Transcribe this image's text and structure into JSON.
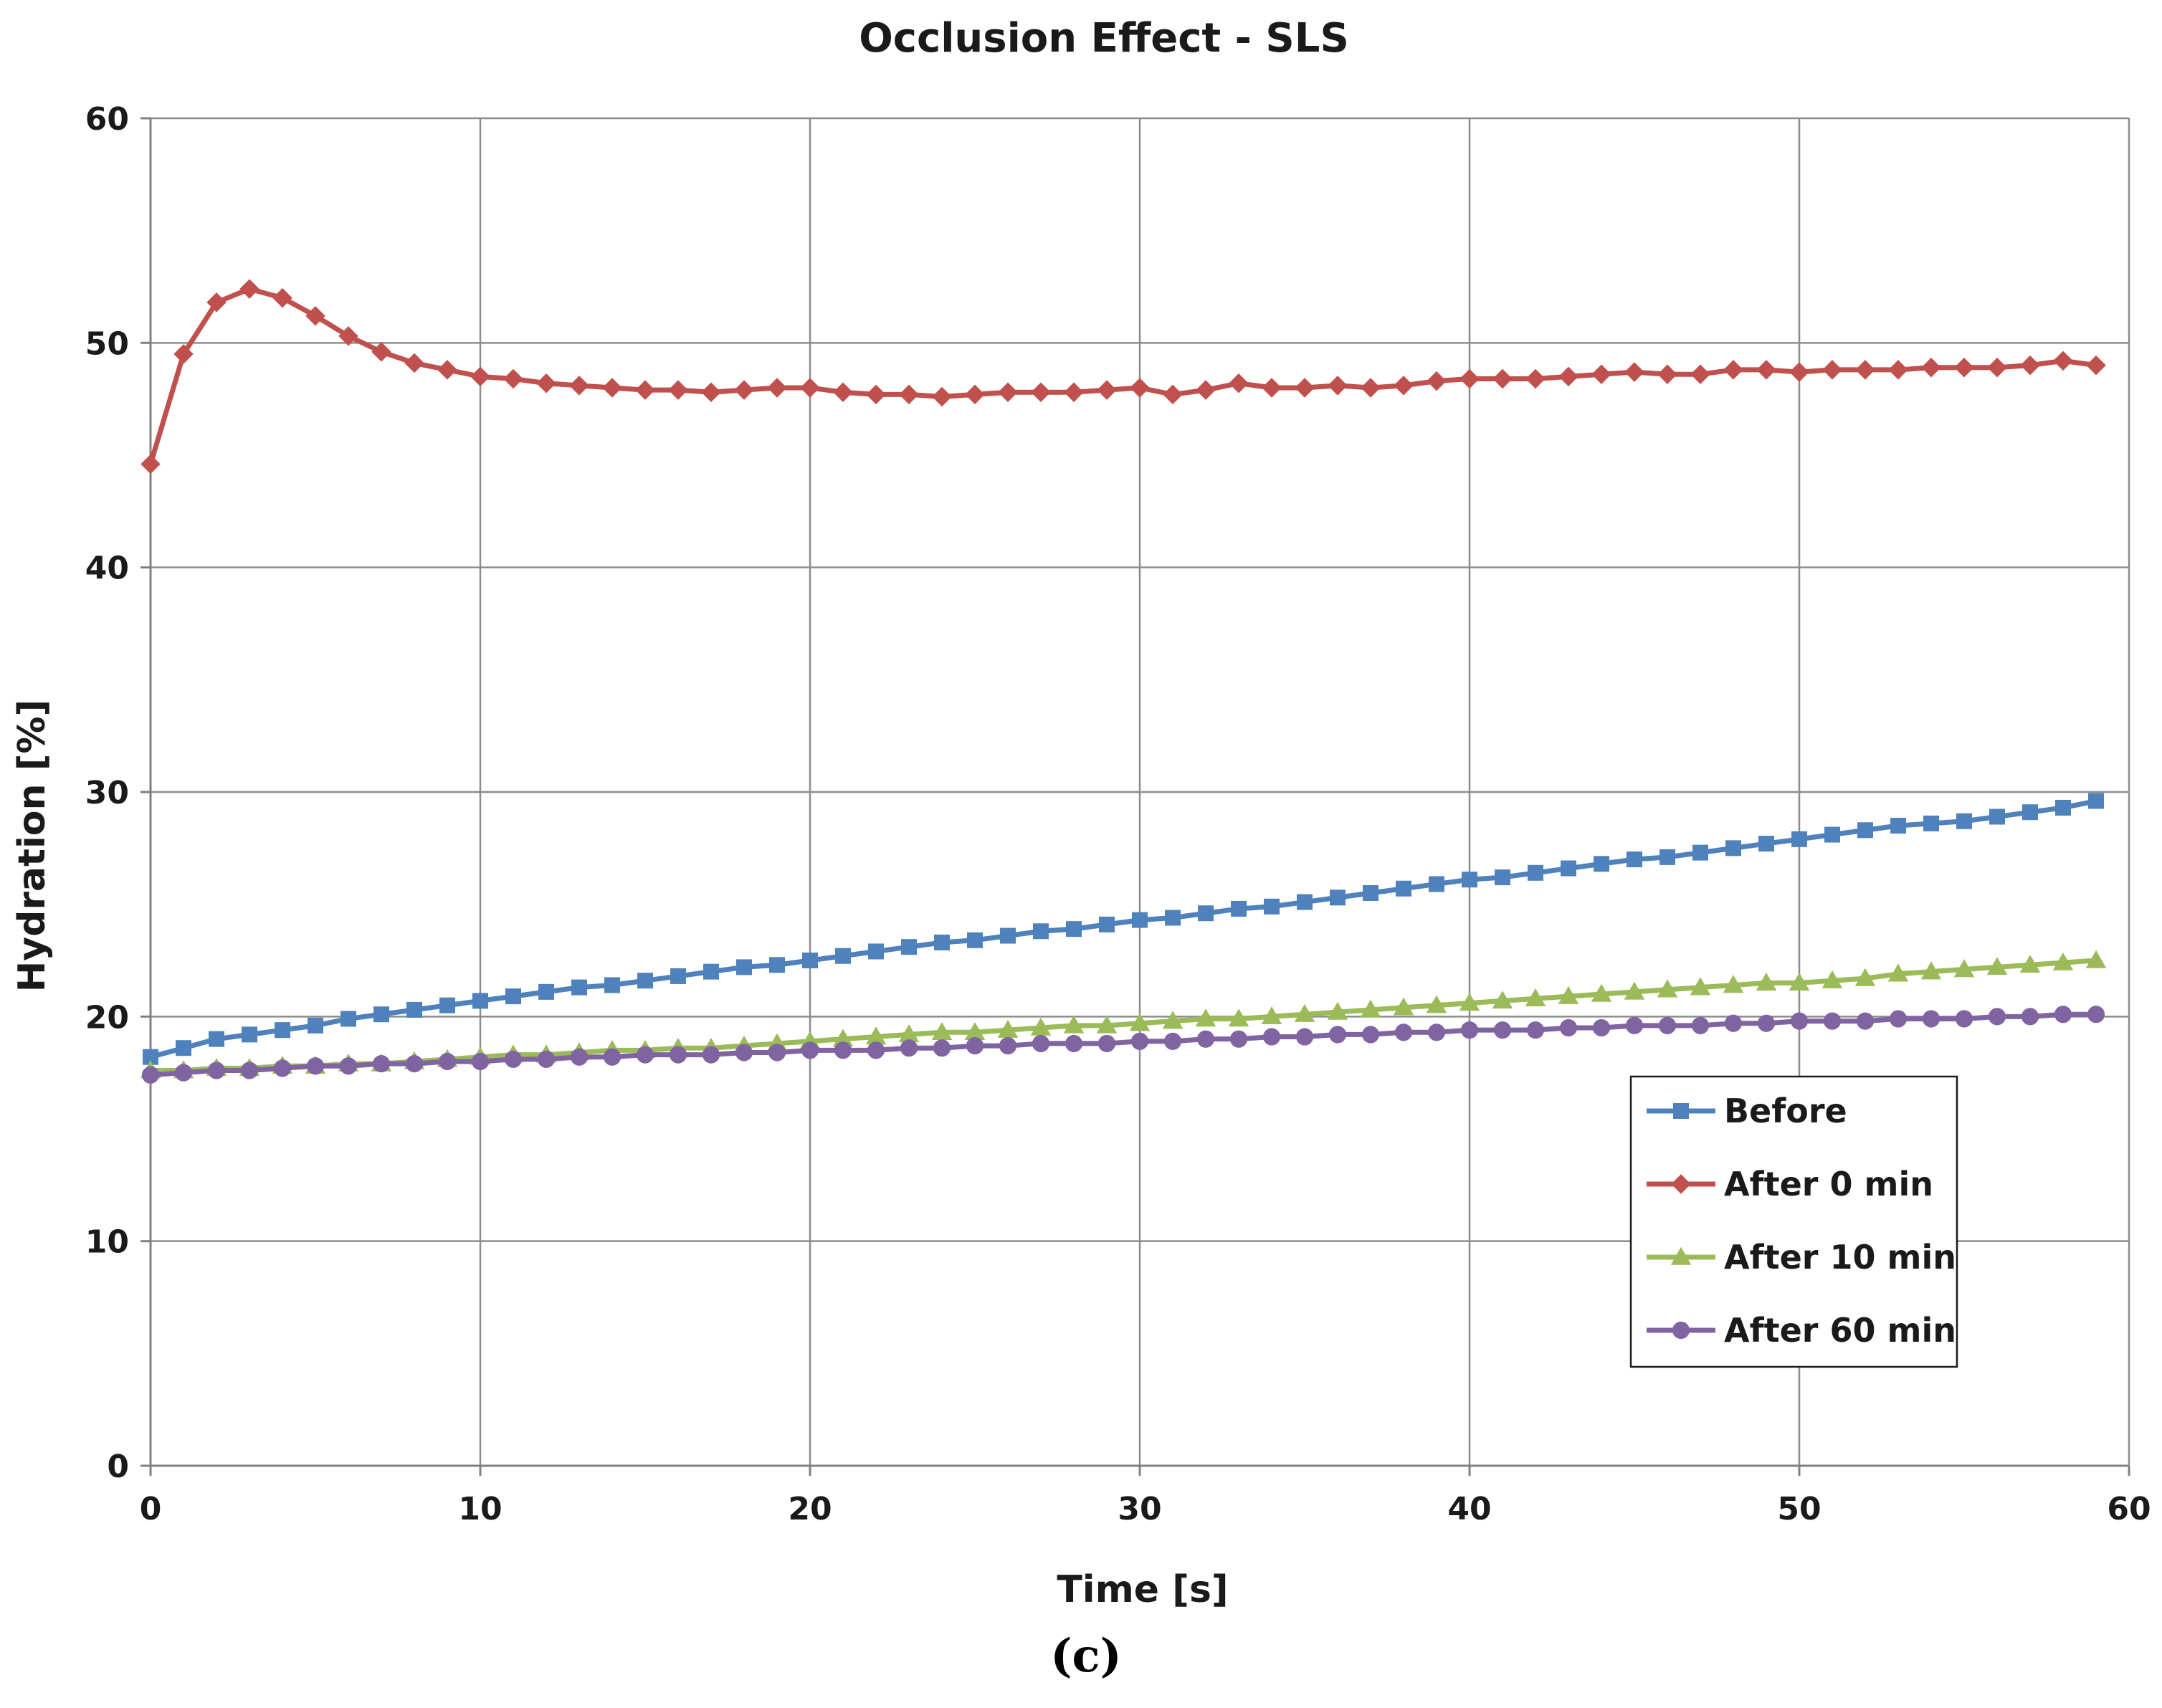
{
  "chart_data": {
    "type": "line",
    "title": "Occlusion Effect - SLS",
    "xlabel": "Time [s]",
    "ylabel": "Hydration [%]",
    "xlim": [
      0,
      60
    ],
    "ylim": [
      0,
      60
    ],
    "xticks": [
      0,
      10,
      20,
      30,
      40,
      50,
      60
    ],
    "yticks": [
      0,
      10,
      20,
      30,
      40,
      50,
      60
    ],
    "grid": true,
    "legend_position": "lower-right",
    "caption": "(c)",
    "x": [
      0,
      1,
      2,
      3,
      4,
      5,
      6,
      7,
      8,
      9,
      10,
      11,
      12,
      13,
      14,
      15,
      16,
      17,
      18,
      19,
      20,
      21,
      22,
      23,
      24,
      25,
      26,
      27,
      28,
      29,
      30,
      31,
      32,
      33,
      34,
      35,
      36,
      37,
      38,
      39,
      40,
      41,
      42,
      43,
      44,
      45,
      46,
      47,
      48,
      49,
      50,
      51,
      52,
      53,
      54,
      55,
      56,
      57,
      58,
      59
    ],
    "series": [
      {
        "name": "Before",
        "color": "#4f81bd",
        "marker": "square",
        "values": [
          18.2,
          18.6,
          19.0,
          19.2,
          19.4,
          19.6,
          19.9,
          20.1,
          20.3,
          20.5,
          20.7,
          20.9,
          21.1,
          21.3,
          21.4,
          21.6,
          21.8,
          22.0,
          22.2,
          22.3,
          22.5,
          22.7,
          22.9,
          23.1,
          23.3,
          23.4,
          23.6,
          23.8,
          23.9,
          24.1,
          24.3,
          24.4,
          24.6,
          24.8,
          24.9,
          25.1,
          25.3,
          25.5,
          25.7,
          25.9,
          26.1,
          26.2,
          26.4,
          26.6,
          26.8,
          27.0,
          27.1,
          27.3,
          27.5,
          27.7,
          27.9,
          28.1,
          28.3,
          28.5,
          28.6,
          28.7,
          28.9,
          29.1,
          29.3,
          29.6
        ]
      },
      {
        "name": "After 0 min",
        "color": "#c0504d",
        "marker": "diamond",
        "values": [
          44.6,
          49.5,
          51.8,
          52.4,
          52.0,
          51.2,
          50.3,
          49.6,
          49.1,
          48.8,
          48.5,
          48.4,
          48.2,
          48.1,
          48.0,
          47.9,
          47.9,
          47.8,
          47.9,
          48.0,
          48.0,
          47.8,
          47.7,
          47.7,
          47.6,
          47.7,
          47.8,
          47.8,
          47.8,
          47.9,
          48.0,
          47.7,
          47.9,
          48.2,
          48.0,
          48.0,
          48.1,
          48.0,
          48.1,
          48.3,
          48.4,
          48.4,
          48.4,
          48.5,
          48.6,
          48.7,
          48.6,
          48.6,
          48.8,
          48.8,
          48.7,
          48.8,
          48.8,
          48.8,
          48.9,
          48.9,
          48.9,
          49.0,
          49.2,
          49.0
        ]
      },
      {
        "name": "After 10 min",
        "color": "#9bbb59",
        "marker": "triangle",
        "values": [
          17.6,
          17.6,
          17.7,
          17.7,
          17.8,
          17.8,
          17.9,
          17.9,
          18.0,
          18.1,
          18.2,
          18.3,
          18.3,
          18.4,
          18.5,
          18.5,
          18.6,
          18.6,
          18.7,
          18.8,
          18.9,
          19.0,
          19.1,
          19.2,
          19.3,
          19.3,
          19.4,
          19.5,
          19.6,
          19.6,
          19.7,
          19.8,
          19.9,
          19.9,
          20.0,
          20.1,
          20.2,
          20.3,
          20.4,
          20.5,
          20.6,
          20.7,
          20.8,
          20.9,
          21.0,
          21.1,
          21.2,
          21.3,
          21.4,
          21.5,
          21.5,
          21.6,
          21.7,
          21.9,
          22.0,
          22.1,
          22.2,
          22.3,
          22.4,
          22.5
        ]
      },
      {
        "name": "After 60 min",
        "color": "#8064a2",
        "marker": "circle",
        "values": [
          17.4,
          17.5,
          17.6,
          17.6,
          17.7,
          17.8,
          17.8,
          17.9,
          17.9,
          18.0,
          18.0,
          18.1,
          18.1,
          18.2,
          18.2,
          18.3,
          18.3,
          18.3,
          18.4,
          18.4,
          18.5,
          18.5,
          18.5,
          18.6,
          18.6,
          18.7,
          18.7,
          18.8,
          18.8,
          18.8,
          18.9,
          18.9,
          19.0,
          19.0,
          19.1,
          19.1,
          19.2,
          19.2,
          19.3,
          19.3,
          19.4,
          19.4,
          19.4,
          19.5,
          19.5,
          19.6,
          19.6,
          19.6,
          19.7,
          19.7,
          19.8,
          19.8,
          19.8,
          19.9,
          19.9,
          19.9,
          20.0,
          20.0,
          20.1,
          20.1
        ]
      }
    ]
  }
}
